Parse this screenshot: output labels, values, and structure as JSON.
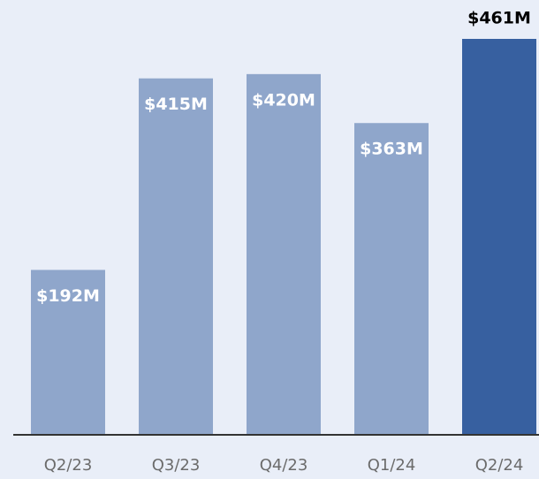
{
  "chart_data": {
    "type": "bar",
    "categories": [
      "Q2/23",
      "Q3/23",
      "Q4/23",
      "Q1/24",
      "Q2/24"
    ],
    "values": [
      192,
      415,
      420,
      363,
      461
    ],
    "value_labels": [
      "$192M",
      "$415M",
      "$420M",
      "$363M",
      "$461M"
    ],
    "colors": [
      "#8fa6cb",
      "#8fa6cb",
      "#8fa6cb",
      "#8fa6cb",
      "#3760a0"
    ]
  }
}
